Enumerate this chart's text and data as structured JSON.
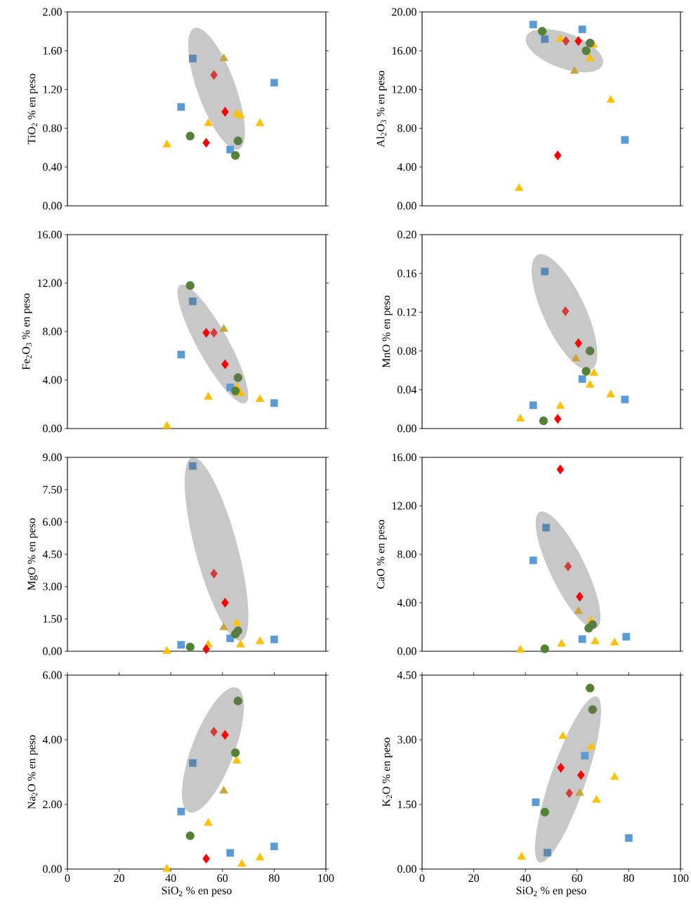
{
  "chart_data": [
    {
      "type": "scatter",
      "ylabel": "TiO$_{2}$ % en peso",
      "xlim": [
        0,
        100
      ],
      "ylim": [
        0,
        2
      ],
      "tick_labels": "y",
      "yticks": [
        {
          "value": 0,
          "label": "0.00"
        },
        {
          "value": 0.4,
          "label": "0.40"
        },
        {
          "value": 0.8,
          "label": "0.80"
        },
        {
          "value": 1.2,
          "label": "1.20"
        },
        {
          "value": 1.6,
          "label": "1.60"
        },
        {
          "value": 2,
          "label": "2.00"
        }
      ],
      "series": [
        {
          "marker": "square",
          "color": "#5b9bd5",
          "x": [
            44,
            63,
            80
          ],
          "values": [
            1.02,
            0.58,
            1.27
          ]
        },
        {
          "marker": "square",
          "color": "#5b87b0",
          "x": [
            48.5
          ],
          "values": [
            1.52
          ]
        },
        {
          "marker": "triangle",
          "color": "#ffc000",
          "x": [
            38.5,
            54.5,
            65.5,
            67,
            74.5
          ],
          "values": [
            0.63,
            0.85,
            0.95,
            0.93,
            0.85
          ]
        },
        {
          "marker": "triangle",
          "color": "#c9a43c",
          "x": [
            60.5
          ],
          "values": [
            1.52
          ]
        },
        {
          "marker": "circle",
          "color": "#548235",
          "x": [
            47.5,
            65
          ],
          "values": [
            0.72,
            0.52
          ]
        },
        {
          "marker": "circle",
          "color": "#5c7a45",
          "x": [
            66
          ],
          "values": [
            0.67
          ]
        },
        {
          "marker": "diamond",
          "color": "#ff0000",
          "x": [
            53.7,
            61
          ],
          "values": [
            0.65,
            0.97
          ]
        },
        {
          "marker": "diamond",
          "color": "#d23c3c",
          "x": [
            56.7
          ],
          "values": [
            1.35
          ]
        }
      ]
    },
    {
      "type": "scatter",
      "ylabel": "Al$_{2}$O$_{3}$ % en peso",
      "xlim": [
        0,
        100
      ],
      "ylim": [
        0,
        20
      ],
      "tick_labels": "y",
      "yticks": [
        {
          "value": 0,
          "label": "0.00"
        },
        {
          "value": 4,
          "label": "4.00"
        },
        {
          "value": 8,
          "label": "8.00"
        },
        {
          "value": 12,
          "label": "12.00"
        },
        {
          "value": 16,
          "label": "16.00"
        },
        {
          "value": 20,
          "label": "20.00"
        }
      ],
      "series": [
        {
          "marker": "square",
          "color": "#5b9bd5",
          "x": [
            43,
            62,
            78.5
          ],
          "values": [
            18.7,
            18.2,
            6.8
          ]
        },
        {
          "marker": "square",
          "color": "#5b87b0",
          "x": [
            47.5
          ],
          "values": [
            17.2
          ]
        },
        {
          "marker": "triangle",
          "color": "#ffc000",
          "x": [
            37.5,
            53.5,
            65,
            66.3,
            73
          ],
          "values": [
            1.8,
            17.2,
            15.2,
            16.6,
            10.9
          ]
        },
        {
          "marker": "triangle",
          "color": "#c9a43c",
          "x": [
            59
          ],
          "values": [
            13.9
          ]
        },
        {
          "marker": "circle",
          "color": "#548235",
          "x": [
            46.5,
            63.5
          ],
          "values": [
            18.0,
            16.0
          ]
        },
        {
          "marker": "circle",
          "color": "#5c7a45",
          "x": [
            65
          ],
          "values": [
            16.8
          ]
        },
        {
          "marker": "diamond",
          "color": "#ff0000",
          "x": [
            52.5,
            60.5
          ],
          "values": [
            5.2,
            17.0
          ]
        },
        {
          "marker": "diamond",
          "color": "#d23c3c",
          "x": [
            55.7
          ],
          "values": [
            17.0
          ]
        }
      ]
    },
    {
      "type": "scatter",
      "ylabel": "Fe$_{2}$O$_{3}$ % en peso",
      "xlim": [
        0,
        100
      ],
      "ylim": [
        0,
        16
      ],
      "tick_labels": "y",
      "yticks": [
        {
          "value": 0,
          "label": "0.00"
        },
        {
          "value": 4,
          "label": "4.00"
        },
        {
          "value": 8,
          "label": "8.00"
        },
        {
          "value": 12,
          "label": "12.00"
        },
        {
          "value": 16,
          "label": "16.00"
        }
      ],
      "series": [
        {
          "marker": "square",
          "color": "#5b9bd5",
          "x": [
            44,
            63,
            80
          ],
          "values": [
            6.1,
            3.4,
            2.1
          ]
        },
        {
          "marker": "square",
          "color": "#5b87b0",
          "x": [
            48.5
          ],
          "values": [
            10.5
          ]
        },
        {
          "marker": "triangle",
          "color": "#ffc000",
          "x": [
            38.5,
            54.5,
            65.5,
            67,
            74.5
          ],
          "values": [
            0.2,
            2.6,
            3.4,
            2.9,
            2.4
          ]
        },
        {
          "marker": "triangle",
          "color": "#c9a43c",
          "x": [
            60.5
          ],
          "values": [
            8.2
          ]
        },
        {
          "marker": "circle",
          "color": "#548235",
          "x": [
            47.5,
            65
          ],
          "values": [
            11.8,
            3.1
          ]
        },
        {
          "marker": "circle",
          "color": "#5c7a45",
          "x": [
            66
          ],
          "values": [
            4.2
          ]
        },
        {
          "marker": "diamond",
          "color": "#ff0000",
          "x": [
            53.7,
            61
          ],
          "values": [
            7.9,
            5.3
          ]
        },
        {
          "marker": "diamond",
          "color": "#d23c3c",
          "x": [
            56.7
          ],
          "values": [
            7.9
          ]
        }
      ]
    },
    {
      "type": "scatter",
      "ylabel": "MnO % en peso",
      "xlim": [
        0,
        100
      ],
      "ylim": [
        0,
        0.2
      ],
      "tick_labels": "y",
      "yticks": [
        {
          "value": 0,
          "label": "0.00"
        },
        {
          "value": 0.04,
          "label": "0.04"
        },
        {
          "value": 0.08,
          "label": "0.08"
        },
        {
          "value": 0.12,
          "label": "0.12"
        },
        {
          "value": 0.16,
          "label": "0.16"
        },
        {
          "value": 0.2,
          "label": "0.20"
        }
      ],
      "series": [
        {
          "marker": "square",
          "color": "#5b9bd5",
          "x": [
            43,
            62,
            78.5
          ],
          "values": [
            0.024,
            0.051,
            0.03
          ]
        },
        {
          "marker": "square",
          "color": "#5b87b0",
          "x": [
            47.5
          ],
          "values": [
            0.162
          ]
        },
        {
          "marker": "triangle",
          "color": "#ffc000",
          "x": [
            38,
            53.5,
            65,
            66.5,
            73
          ],
          "values": [
            0.01,
            0.023,
            0.045,
            0.057,
            0.035
          ]
        },
        {
          "marker": "triangle",
          "color": "#c9a43c",
          "x": [
            59.5
          ],
          "values": [
            0.072
          ]
        },
        {
          "marker": "circle",
          "color": "#548235",
          "x": [
            47,
            63.5
          ],
          "values": [
            0.008,
            0.059
          ]
        },
        {
          "marker": "circle",
          "color": "#5c7a45",
          "x": [
            65
          ],
          "values": [
            0.08
          ]
        },
        {
          "marker": "diamond",
          "color": "#ff0000",
          "x": [
            52.5,
            60.5
          ],
          "values": [
            0.01,
            0.088
          ]
        },
        {
          "marker": "diamond",
          "color": "#d23c3c",
          "x": [
            55.5
          ],
          "values": [
            0.121
          ]
        }
      ]
    },
    {
      "type": "scatter",
      "ylabel": "MgO % en peso",
      "xlim": [
        0,
        100
      ],
      "ylim": [
        0,
        9
      ],
      "tick_labels": "y",
      "yticks": [
        {
          "value": 0,
          "label": "0.00"
        },
        {
          "value": 1.5,
          "label": "1.50"
        },
        {
          "value": 3,
          "label": "3.00"
        },
        {
          "value": 4.5,
          "label": "4.50"
        },
        {
          "value": 6,
          "label": "6.00"
        },
        {
          "value": 7.5,
          "label": "7.50"
        },
        {
          "value": 9,
          "label": "9.00"
        }
      ],
      "series": [
        {
          "marker": "square",
          "color": "#5b9bd5",
          "x": [
            44,
            63,
            80
          ],
          "values": [
            0.3,
            0.6,
            0.55
          ]
        },
        {
          "marker": "square",
          "color": "#5b87b0",
          "x": [
            48.5
          ],
          "values": [
            8.6
          ]
        },
        {
          "marker": "triangle",
          "color": "#ffc000",
          "x": [
            38.5,
            54.5,
            65.5,
            67,
            74.5
          ],
          "values": [
            0.0,
            0.3,
            1.3,
            0.3,
            0.45
          ]
        },
        {
          "marker": "triangle",
          "color": "#c9a43c",
          "x": [
            60.5
          ],
          "values": [
            1.1
          ]
        },
        {
          "marker": "circle",
          "color": "#548235",
          "x": [
            47.5,
            65
          ],
          "values": [
            0.2,
            0.8
          ]
        },
        {
          "marker": "circle",
          "color": "#5c7a45",
          "x": [
            66
          ],
          "values": [
            0.95
          ]
        },
        {
          "marker": "diamond",
          "color": "#ff0000",
          "x": [
            53.7,
            61
          ],
          "values": [
            0.1,
            2.25
          ]
        },
        {
          "marker": "diamond",
          "color": "#d23c3c",
          "x": [
            56.7
          ],
          "values": [
            3.6
          ]
        }
      ]
    },
    {
      "type": "scatter",
      "ylabel": "CaO % en peso",
      "xlim": [
        0,
        100
      ],
      "ylim": [
        0,
        16
      ],
      "tick_labels": "y",
      "yticks": [
        {
          "value": 0,
          "label": "0.00"
        },
        {
          "value": 4,
          "label": "4.00"
        },
        {
          "value": 8,
          "label": "8.00"
        },
        {
          "value": 12,
          "label": "12.00"
        },
        {
          "value": 16,
          "label": "16.00"
        }
      ],
      "series": [
        {
          "marker": "square",
          "color": "#5b9bd5",
          "x": [
            43,
            62,
            79
          ],
          "values": [
            7.5,
            1.0,
            1.2
          ]
        },
        {
          "marker": "square",
          "color": "#5b87b0",
          "x": [
            48
          ],
          "values": [
            10.2
          ]
        },
        {
          "marker": "triangle",
          "color": "#ffc000",
          "x": [
            38,
            54,
            65.5,
            67,
            74.5
          ],
          "values": [
            0.1,
            0.6,
            2.5,
            0.8,
            0.7
          ]
        },
        {
          "marker": "triangle",
          "color": "#c9a43c",
          "x": [
            60.5
          ],
          "values": [
            3.3
          ]
        },
        {
          "marker": "circle",
          "color": "#548235",
          "x": [
            47.5,
            64.5
          ],
          "values": [
            0.2,
            1.9
          ]
        },
        {
          "marker": "circle",
          "color": "#5c7a45",
          "x": [
            66
          ],
          "values": [
            2.2
          ]
        },
        {
          "marker": "diamond",
          "color": "#ff0000",
          "x": [
            53.5,
            61
          ],
          "values": [
            15.0,
            4.5
          ]
        },
        {
          "marker": "diamond",
          "color": "#d23c3c",
          "x": [
            56.5
          ],
          "values": [
            7.0
          ]
        }
      ]
    },
    {
      "type": "scatter",
      "ylabel": "Na$_{2}$O % en peso",
      "xlabel": "SiO$_{2}$ % en peso",
      "xlim": [
        0,
        100
      ],
      "ylim": [
        0,
        6
      ],
      "xticks": [
        0,
        20,
        40,
        60,
        80,
        100
      ],
      "yticks": [
        {
          "value": 0,
          "label": "0.00"
        },
        {
          "value": 2,
          "label": "2.00"
        },
        {
          "value": 4,
          "label": "4.00"
        },
        {
          "value": 6,
          "label": "6.00"
        }
      ],
      "series": [
        {
          "marker": "square",
          "color": "#5b9bd5",
          "x": [
            44,
            63,
            80
          ],
          "values": [
            1.78,
            0.5,
            0.7
          ]
        },
        {
          "marker": "square",
          "color": "#5b87b0",
          "x": [
            48.5
          ],
          "values": [
            3.28
          ]
        },
        {
          "marker": "triangle",
          "color": "#ffc000",
          "x": [
            38.5,
            54.5,
            65.5,
            67.5,
            74.5
          ],
          "values": [
            0.0,
            1.42,
            3.35,
            0.15,
            0.35
          ]
        },
        {
          "marker": "triangle",
          "color": "#c9a43c",
          "x": [
            60.5
          ],
          "values": [
            2.42
          ]
        },
        {
          "marker": "circle",
          "color": "#548235",
          "x": [
            47.5,
            65
          ],
          "values": [
            1.03,
            3.6
          ]
        },
        {
          "marker": "circle",
          "color": "#5c7a45",
          "x": [
            66
          ],
          "values": [
            5.2
          ]
        },
        {
          "marker": "diamond",
          "color": "#ff0000",
          "x": [
            53.7,
            61
          ],
          "values": [
            0.32,
            4.15
          ]
        },
        {
          "marker": "diamond",
          "color": "#d23c3c",
          "x": [
            56.7
          ],
          "values": [
            4.25
          ]
        }
      ]
    },
    {
      "type": "scatter",
      "ylabel": "K$_{2}$O % en peso",
      "xlabel": "SiO$_{2}$ % en peso",
      "xlim": [
        0,
        100
      ],
      "ylim": [
        0,
        4.5
      ],
      "xticks": [
        0,
        20,
        40,
        60,
        80,
        100
      ],
      "yticks": [
        {
          "value": 0,
          "label": "0.00"
        },
        {
          "value": 1.5,
          "label": "1.50"
        },
        {
          "value": 3,
          "label": "3.00"
        },
        {
          "value": 4.5,
          "label": "4.50"
        }
      ],
      "series": [
        {
          "marker": "square",
          "color": "#5b9bd5",
          "x": [
            44,
            63,
            80
          ],
          "values": [
            1.55,
            2.63,
            0.72
          ]
        },
        {
          "marker": "square",
          "color": "#5b87b0",
          "x": [
            48.5
          ],
          "values": [
            0.38
          ]
        },
        {
          "marker": "triangle",
          "color": "#ffc000",
          "x": [
            38.5,
            54.5,
            65.5,
            67.5,
            74.5
          ],
          "values": [
            0.28,
            3.08,
            2.83,
            1.6,
            2.13
          ]
        },
        {
          "marker": "triangle",
          "color": "#c9a43c",
          "x": [
            61
          ],
          "values": [
            1.76
          ]
        },
        {
          "marker": "circle",
          "color": "#548235",
          "x": [
            47.5,
            65
          ],
          "values": [
            1.32,
            4.2
          ]
        },
        {
          "marker": "circle",
          "color": "#5c7a45",
          "x": [
            66
          ],
          "values": [
            3.7
          ]
        },
        {
          "marker": "diamond",
          "color": "#ff0000",
          "x": [
            53.7,
            61.5
          ],
          "values": [
            2.35,
            2.18
          ]
        },
        {
          "marker": "diamond",
          "color": "#d23c3c",
          "x": [
            57
          ],
          "values": [
            1.76
          ]
        }
      ]
    }
  ]
}
